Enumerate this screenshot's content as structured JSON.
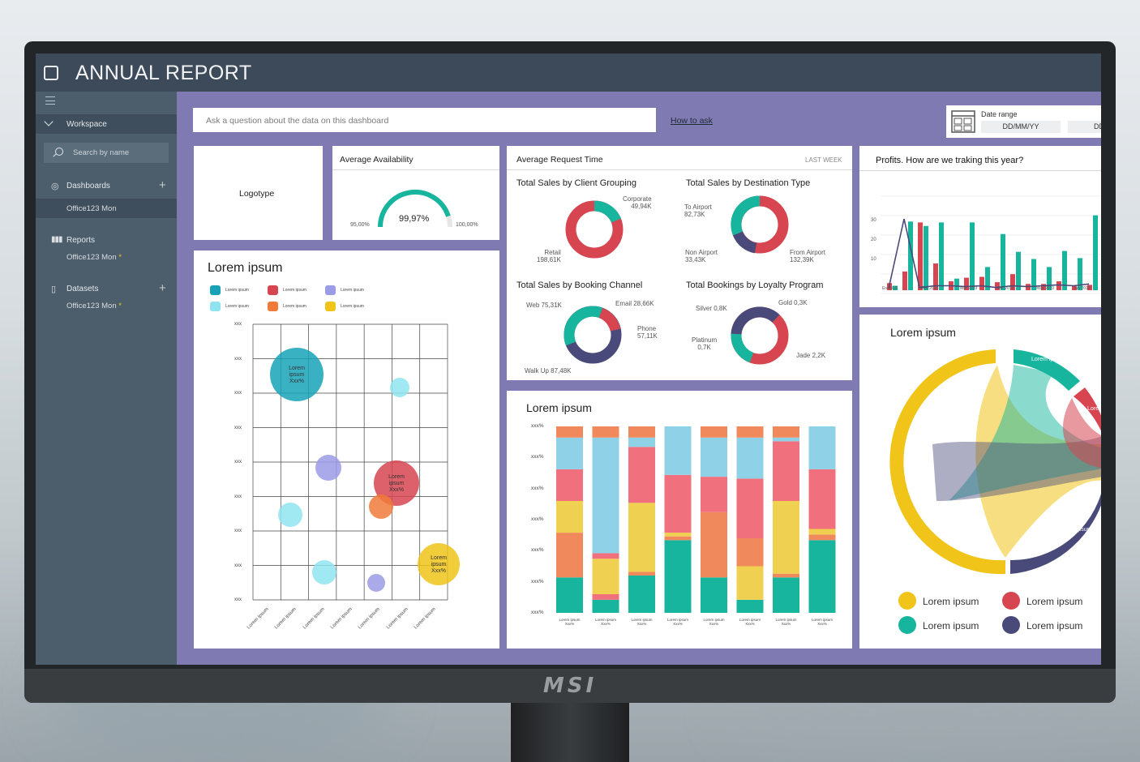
{
  "app": {
    "title": "ANNUAL REPORT",
    "brand": "MSI"
  },
  "sidebar": {
    "workspace": "Workspace",
    "search_placeholder": "Search by name",
    "dashboards": {
      "label": "Dashboards",
      "items": [
        "Office123 Mon"
      ]
    },
    "reports": {
      "label": "Reports",
      "items": [
        "Office123 Mon"
      ]
    },
    "datasets": {
      "label": "Datasets",
      "items": [
        "Office123 Mon"
      ]
    }
  },
  "qa": {
    "placeholder": "Ask a question about the data on this dashboard",
    "how_to": "How to ask"
  },
  "date_range": {
    "label": "Date range",
    "from": "DD/MM/YY",
    "to": "DD"
  },
  "logotype": "Logotype",
  "availability": {
    "title": "Average Availability",
    "value": "99,97%",
    "min": "95,00%",
    "max": "100,00%",
    "fraction": 0.9
  },
  "request_time": {
    "title": "Average Request Time",
    "period": "LAST WEEK",
    "donuts": [
      {
        "title": "Total Sales by Client Grouping",
        "labels": [
          "Corporate",
          "49,94K",
          "Retail",
          "198,61K"
        ]
      },
      {
        "title": "Total Sales by Destination Type",
        "labels": [
          "To Airport",
          "82,73K",
          "Non Airport",
          "33,43K",
          "From Airport",
          "132,39K"
        ]
      },
      {
        "title": "Total Sales by Booking Channel",
        "labels": [
          "Web 75,31K",
          "Email 28,66K",
          "Phone",
          "57,11K",
          "Walk Up 87,48K"
        ]
      },
      {
        "title": "Total Bookings by Loyalty Program",
        "labels": [
          "Silver 0,8K",
          "Gold 0,3K",
          "Platinum",
          "0,7K",
          "Jade 2,2K"
        ]
      }
    ]
  },
  "profits": {
    "title": "Profits. How are we traking this year?",
    "y_ticks": [
      "30",
      "20",
      "10"
    ],
    "x_ticks": [
      "En 2019",
      "Feb 2019",
      "Mar 2019",
      "Abr 2019",
      "May 2019",
      "Jun 2019"
    ]
  },
  "scatter": {
    "title": "Lorem ipsum",
    "legend": [
      "Lorem ipsum",
      "Lorem ipsum",
      "Lorem ipsum",
      "Lorem ipsum",
      "Lorem ipsum",
      "Lorem ipsum"
    ],
    "y_ticks": [
      "xxx",
      "xxx",
      "xxx",
      "xxx",
      "xxx",
      "xxx",
      "xxx",
      "xxx",
      "xxx"
    ],
    "x_ticks": [
      "Lorem ipsum",
      "Lorem ipsum",
      "Lorem ipsum",
      "Lorem ipsum",
      "Lorem ipsum",
      "Lorem ipsum",
      "Lorem ipsum"
    ],
    "bubble_label": "Lorem ipsum Xxx%"
  },
  "stacked": {
    "title": "Lorem ipsum",
    "y_ticks": [
      "xxx%",
      "xxx%",
      "xxx%",
      "xxx%",
      "xxx%",
      "xxx%",
      "xxx%"
    ],
    "x_label": "Lorem ipsum Xxx%"
  },
  "chord": {
    "title": "Lorem ipsum",
    "arc_labels": [
      "Lorem ipsum",
      "Lorem ipsum",
      "Lorem ipsum",
      "Lorem"
    ],
    "legend": [
      "Lorem ipsum",
      "Lorem ipsum",
      "Lorem ipsum",
      "Lorem ipsum"
    ]
  },
  "colors": {
    "teal": "#17b59e",
    "red": "#d64550",
    "yellow": "#f0c419",
    "navy": "#4a4a7a",
    "purple_bg": "#7f7ab2"
  }
}
